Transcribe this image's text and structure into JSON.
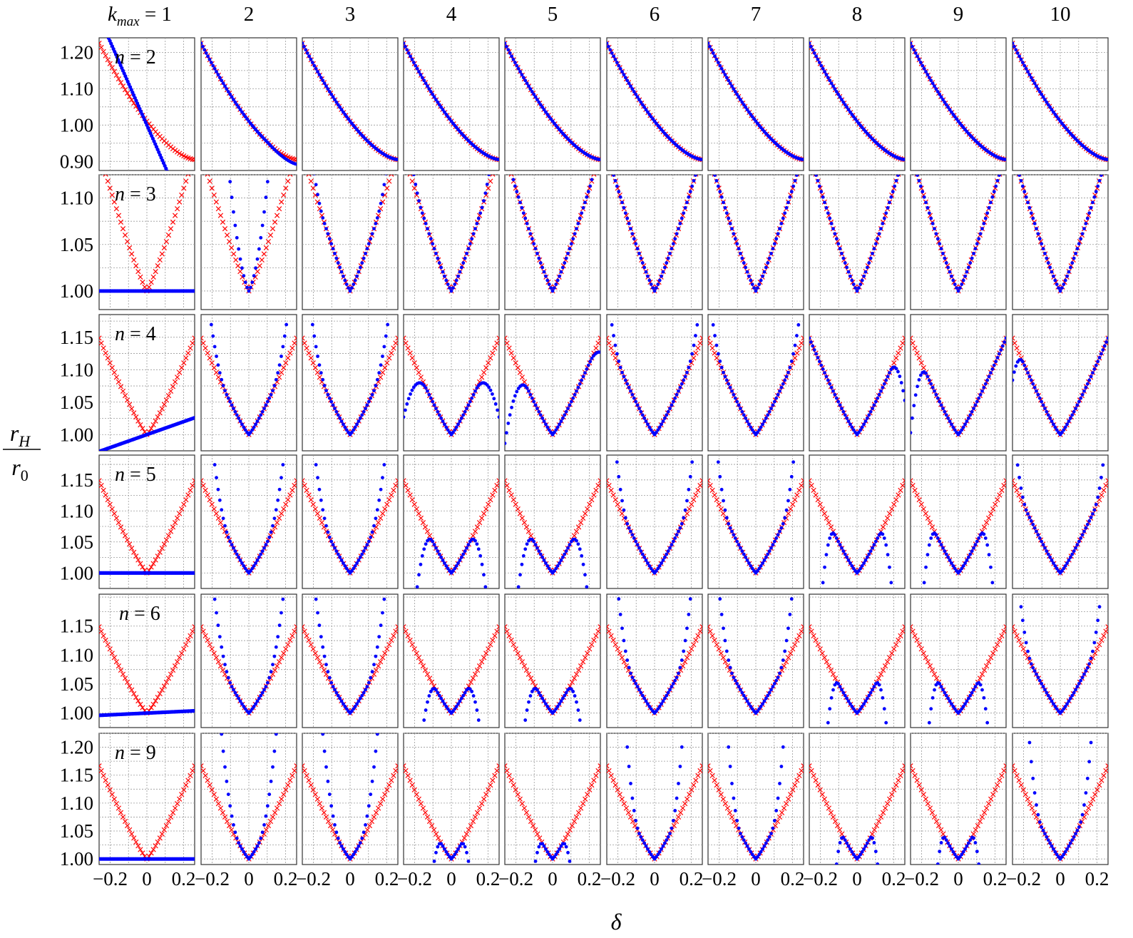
{
  "chart_data": {
    "type": "scatter",
    "layout": "small-multiples grid: rows = n, columns = k_max",
    "xlabel": "δ",
    "ylabel": {
      "numerator": "r",
      "numerator_sub": "H",
      "denominator": "r",
      "denominator_sub": "0"
    },
    "column_header_prefix": {
      "base": "k",
      "sub": "max",
      "eq": " = "
    },
    "columns": [
      "1",
      "2",
      "3",
      "4",
      "5",
      "6",
      "7",
      "8",
      "9",
      "10"
    ],
    "x_ticks": [
      "−0.2",
      "0",
      "0.2"
    ],
    "x_tick_values": [
      -0.2,
      0,
      0.2
    ],
    "xlim": [
      -0.26,
      0.26
    ],
    "grid": true,
    "series": [
      {
        "name": "",
        "color": "#ff0000",
        "marker": "x"
      },
      {
        "name": "",
        "color": "#0000ff",
        "marker": "dot"
      }
    ],
    "rows": [
      {
        "label": "n = 2",
        "n": 2,
        "ylim": [
          0.875,
          1.24
        ],
        "yticks": [
          0.9,
          1.0,
          1.1,
          1.2
        ],
        "ytick_labels": [
          "0.90",
          "1.00",
          "1.10",
          "1.20"
        ],
        "blue_k1": "linear",
        "blue_k1_slope": -1.15
      },
      {
        "label": "n = 3",
        "n": 3,
        "ylim": [
          0.98,
          1.125
        ],
        "yticks": [
          1.0,
          1.05,
          1.1
        ],
        "ytick_labels": [
          "1.00",
          "1.05",
          "1.10"
        ],
        "blue_k1": "constant"
      },
      {
        "label": "n = 4",
        "n": 4,
        "ylim": [
          0.975,
          1.185
        ],
        "yticks": [
          1.0,
          1.05,
          1.1,
          1.15
        ],
        "ytick_labels": [
          "1.00",
          "1.05",
          "1.10",
          "1.15"
        ],
        "blue_k1": "linear",
        "blue_k1_slope": 0.1
      },
      {
        "label": "n = 5",
        "n": 5,
        "ylim": [
          0.975,
          1.19
        ],
        "yticks": [
          1.0,
          1.05,
          1.1,
          1.15
        ],
        "ytick_labels": [
          "1.00",
          "1.05",
          "1.10",
          "1.15"
        ],
        "blue_k1": "constant"
      },
      {
        "label": "n = 6",
        "n": 6,
        "ylim": [
          0.975,
          1.205
        ],
        "yticks": [
          1.0,
          1.05,
          1.1,
          1.15
        ],
        "ytick_labels": [
          "1.00",
          "1.05",
          "1.10",
          "1.15"
        ],
        "blue_k1": "linear",
        "blue_k1_slope": 0.015
      },
      {
        "label": "n = 9",
        "n": 9,
        "ylim": [
          0.99,
          1.225
        ],
        "yticks": [
          1.0,
          1.05,
          1.1,
          1.15,
          1.2
        ],
        "ytick_labels": [
          "1.00",
          "1.05",
          "1.10",
          "1.15",
          "1.20"
        ],
        "blue_k1": "constant"
      }
    ]
  }
}
